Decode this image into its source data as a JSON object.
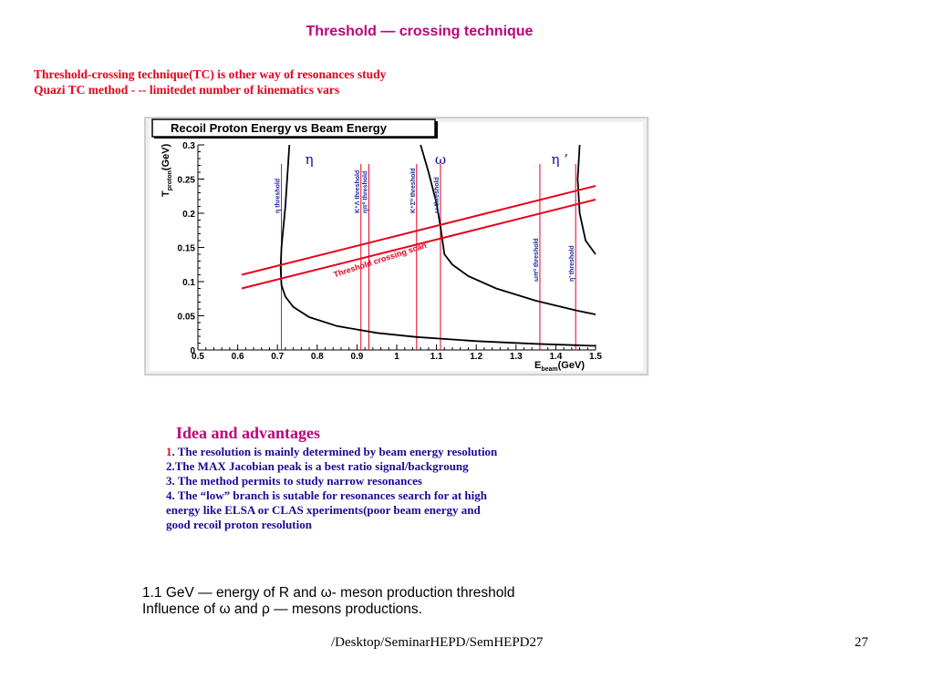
{
  "slide": {
    "title": "Threshold — crossing technique",
    "intro": [
      "Threshold-crossing technique(TC) is other way of resonances study",
      "Quazi TC method - -- limitedet number of kinematics vars"
    ]
  },
  "figure": {
    "title": "Recoil Proton Energy vs Beam Energy",
    "ylabel_main": "T",
    "ylabel_sub": "proton",
    "ylabel_unit": "(GeV)",
    "xlabel_main": "E",
    "xlabel_sub": "beam",
    "xlabel_unit": "(GeV)",
    "band_label": "Threshold crossing scan",
    "particles": [
      {
        "symbol": "η",
        "at_x": 0.78
      },
      {
        "symbol": "ω",
        "at_x": 1.11
      },
      {
        "symbol": "η ’",
        "at_x": 1.41
      }
    ],
    "threshold_labels": [
      {
        "text": "η threshold",
        "at_x": 0.71,
        "color": "#1a2aa0"
      },
      {
        "text": "K⁺Λ threshold",
        "at_x": 0.91,
        "color": "#1a2aa0"
      },
      {
        "text": "ηπ⁰ threshold",
        "at_x": 0.93,
        "color": "#1a2aa0"
      },
      {
        "text": "K⁺Σ⁰ threshold",
        "at_x": 1.05,
        "color": "#1a2aa0"
      },
      {
        "text": "ω threshold",
        "at_x": 1.11,
        "color": "#1a2aa0"
      },
      {
        "text": "ωπ⁰ threshold",
        "at_x": 1.36,
        "color": "#1a2aa0"
      },
      {
        "text": "η’ threshold",
        "at_x": 1.45,
        "color": "#1a2aa0"
      }
    ],
    "colors": {
      "threshold_line": "#e8001e",
      "band": "#e8001e",
      "curve": "#000000",
      "panel": "#ffffff",
      "frame_bg": "#f0f0f0"
    }
  },
  "chart_data": {
    "type": "line",
    "title": "Recoil Proton Energy vs Beam Energy",
    "xlabel": "E_beam(GeV)",
    "ylabel": "T_proton (GeV)",
    "xlim": [
      0.5,
      1.5
    ],
    "ylim": [
      0,
      0.3
    ],
    "x_ticks": [
      "0.5",
      "0.6",
      "0.7",
      "0.8",
      "0.9",
      "1",
      "1.1",
      "1.2",
      "1.3",
      "1.4",
      "1.5"
    ],
    "y_ticks": [
      "0",
      "0.05",
      "0.1",
      "0.15",
      "0.2",
      "0.25",
      "0.3"
    ],
    "thresholds": [
      0.71,
      0.91,
      0.93,
      1.05,
      1.11,
      1.36,
      1.45
    ],
    "series": [
      {
        "x": [
          0.73,
          0.72,
          0.71,
          0.708,
          0.71,
          0.72,
          0.74,
          0.78,
          0.85,
          0.95,
          1.05,
          1.2,
          1.35,
          1.5
        ],
        "y": [
          0.3,
          0.21,
          0.15,
          0.12,
          0.095,
          0.078,
          0.063,
          0.048,
          0.035,
          0.025,
          0.019,
          0.013,
          0.009,
          0.006
        ]
      },
      {
        "x": [
          1.06,
          1.08,
          1.1,
          1.11,
          1.115,
          1.12,
          1.14,
          1.18,
          1.25,
          1.35,
          1.45,
          1.5
        ],
        "y": [
          0.3,
          0.26,
          0.215,
          0.18,
          0.16,
          0.14,
          0.125,
          0.108,
          0.09,
          0.072,
          0.058,
          0.052
        ]
      },
      {
        "x": [
          1.46,
          1.455,
          1.46,
          1.475,
          1.5
        ],
        "y": [
          0.3,
          0.25,
          0.2,
          0.16,
          0.14
        ]
      },
      {
        "x": [
          0.61,
          1.5
        ],
        "y": [
          0.11,
          0.24
        ]
      },
      {
        "x": [
          0.61,
          1.5
        ],
        "y": [
          0.09,
          0.22
        ]
      }
    ]
  },
  "advantages": {
    "heading": "Idea and advantages",
    "items": [
      {
        "num": "1",
        "text": ". The resolution is mainly determined by beam energy resolution"
      },
      {
        "num": "",
        "text": "2.The MAX Jacobian peak is a best ratio signal/backgroung"
      },
      {
        "num": "",
        "text": "3. The method permits to study narrow resonances"
      },
      {
        "num": "",
        "text": "4. The “low” branch is sutable for resonances search for at high"
      },
      {
        "num": "",
        "text": " energy like ELSA or  CLAS xperiments(poor beam energy and"
      },
      {
        "num": "",
        "text": "good recoil proton resolution"
      }
    ]
  },
  "notes": [
    "1.1 GeV — energy of R and ω- meson production threshold",
    "Influence of ω and ρ — mesons productions."
  ],
  "footer": {
    "path": "/Desktop/SeminarHEPD/SemHEPD27",
    "page": "27"
  }
}
